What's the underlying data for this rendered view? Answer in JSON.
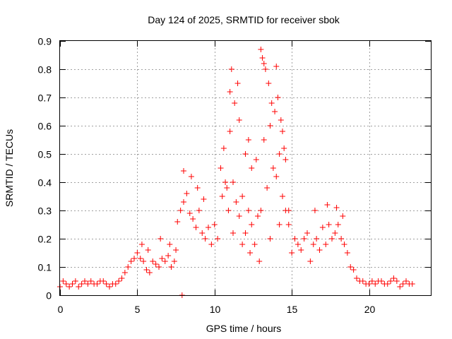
{
  "chart_data": {
    "type": "scatter",
    "title": "Day 124 of 2025, SRMTID for receiver sbok",
    "xlabel": "GPS time / hours",
    "ylabel": "SRMTID / TECUs",
    "xlim": [
      0,
      24
    ],
    "ylim": [
      0,
      0.9
    ],
    "x_ticks": [
      0,
      5,
      10,
      15,
      20
    ],
    "x_tick_labels": [
      "0",
      "5",
      "10",
      "15",
      "20"
    ],
    "y_ticks": [
      0,
      0.1,
      0.2,
      0.3,
      0.4,
      0.5,
      0.6,
      0.7,
      0.8,
      0.9
    ],
    "y_tick_labels": [
      "0",
      "0.1",
      "0.2",
      "0.3",
      "0.4",
      "0.5",
      "0.6",
      "0.7",
      "0.8",
      "0.9"
    ],
    "grid": true,
    "marker": "+",
    "color": "#ff0000",
    "series": [
      {
        "name": "SRMTID",
        "x": [
          0.0,
          0.2,
          0.4,
          0.6,
          0.8,
          1.0,
          1.2,
          1.4,
          1.6,
          1.8,
          2.0,
          2.2,
          2.4,
          2.6,
          2.8,
          3.0,
          3.2,
          3.4,
          3.6,
          3.8,
          4.0,
          4.2,
          4.4,
          4.6,
          4.8,
          5.0,
          5.2,
          5.4,
          5.6,
          5.8,
          6.0,
          6.2,
          6.4,
          6.6,
          6.8,
          7.0,
          7.2,
          7.4,
          7.6,
          7.8,
          7.9,
          8.0,
          8.2,
          8.4,
          8.6,
          8.8,
          9.0,
          9.2,
          9.4,
          9.6,
          9.8,
          10.0,
          10.2,
          10.4,
          10.6,
          10.8,
          11.0,
          11.2,
          11.4,
          11.6,
          11.8,
          12.0,
          12.2,
          12.4,
          12.6,
          12.8,
          13.0,
          13.2,
          13.4,
          13.6,
          13.8,
          14.0,
          14.2,
          14.4,
          14.6,
          14.8,
          15.0,
          15.2,
          15.4,
          15.6,
          15.8,
          16.0,
          16.2,
          16.4,
          16.6,
          16.8,
          17.0,
          17.2,
          17.4,
          17.6,
          17.8,
          18.0,
          18.2,
          18.4,
          18.6,
          18.8,
          19.0,
          19.2,
          19.4,
          19.6,
          19.8,
          20.0,
          20.2,
          20.4,
          20.6,
          20.8,
          21.0,
          21.2,
          21.4,
          21.6,
          21.8,
          22.0,
          22.2,
          22.4,
          22.6,
          22.8,
          11.0,
          11.1,
          11.3,
          11.5,
          11.6,
          12.0,
          12.2,
          12.4,
          12.7,
          13.0,
          13.1,
          13.2,
          13.3,
          13.5,
          13.7,
          13.9,
          14.0,
          14.1,
          14.3,
          14.4,
          14.5,
          14.6,
          10.5,
          10.7,
          10.9,
          11.2,
          11.8,
          12.3,
          12.9,
          13.6,
          14.2,
          14.8,
          8.0,
          8.5,
          8.9,
          9.3,
          16.5,
          17.3,
          17.9,
          18.3,
          5.3,
          5.7,
          6.5,
          7.1,
          7.5
        ],
        "y": [
          0.03,
          0.05,
          0.04,
          0.03,
          0.04,
          0.05,
          0.03,
          0.04,
          0.05,
          0.04,
          0.05,
          0.04,
          0.04,
          0.05,
          0.05,
          0.04,
          0.03,
          0.04,
          0.04,
          0.05,
          0.06,
          0.08,
          0.1,
          0.12,
          0.13,
          0.15,
          0.13,
          0.12,
          0.09,
          0.08,
          0.12,
          0.11,
          0.1,
          0.13,
          0.12,
          0.14,
          0.1,
          0.12,
          0.26,
          0.3,
          0.0,
          0.33,
          0.36,
          0.29,
          0.27,
          0.24,
          0.3,
          0.22,
          0.2,
          0.24,
          0.18,
          0.25,
          0.2,
          0.45,
          0.52,
          0.38,
          0.58,
          0.4,
          0.33,
          0.28,
          0.35,
          0.22,
          0.3,
          0.25,
          0.18,
          0.28,
          0.3,
          0.55,
          0.38,
          0.6,
          0.45,
          0.42,
          0.5,
          0.35,
          0.3,
          0.25,
          0.15,
          0.2,
          0.18,
          0.16,
          0.2,
          0.22,
          0.12,
          0.18,
          0.2,
          0.16,
          0.24,
          0.18,
          0.25,
          0.2,
          0.22,
          0.25,
          0.2,
          0.18,
          0.15,
          0.1,
          0.09,
          0.06,
          0.05,
          0.05,
          0.04,
          0.04,
          0.05,
          0.04,
          0.05,
          0.05,
          0.04,
          0.04,
          0.05,
          0.06,
          0.05,
          0.03,
          0.04,
          0.05,
          0.04,
          0.04,
          0.72,
          0.8,
          0.68,
          0.75,
          0.62,
          0.5,
          0.55,
          0.45,
          0.48,
          0.87,
          0.84,
          0.82,
          0.8,
          0.75,
          0.68,
          0.65,
          0.81,
          0.7,
          0.62,
          0.58,
          0.52,
          0.48,
          0.35,
          0.4,
          0.3,
          0.22,
          0.18,
          0.15,
          0.12,
          0.2,
          0.25,
          0.3,
          0.44,
          0.42,
          0.38,
          0.34,
          0.3,
          0.32,
          0.31,
          0.28,
          0.18,
          0.16,
          0.2,
          0.18,
          0.16
        ]
      }
    ]
  }
}
